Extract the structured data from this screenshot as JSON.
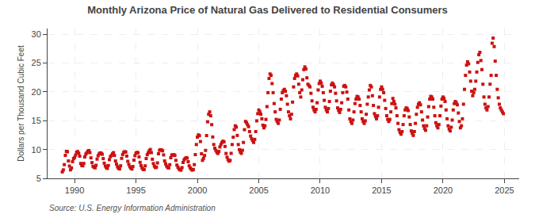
{
  "chart_data": {
    "type": "scatter",
    "title": "Monthly Arizona Price of Natural Gas Delivered to Residential Consumers",
    "ylabel": "Dollars per Thousand Cubic Feet",
    "annotations": [
      "Source: U.S. Energy Information Administration"
    ],
    "color": "#cc1111",
    "marker": "square",
    "grid": true,
    "xlim": [
      1987.8,
      2026.2
    ],
    "ylim": [
      5,
      31
    ],
    "xticks": [
      1990,
      1995,
      2000,
      2005,
      2010,
      2015,
      2020,
      2025
    ],
    "yticks": [
      5,
      10,
      15,
      20,
      25,
      30
    ],
    "x": [
      1989.0,
      1989.083,
      1989.167,
      1989.25,
      1989.333,
      1989.417,
      1989.5,
      1989.583,
      1989.667,
      1989.75,
      1989.833,
      1989.917,
      1990.0,
      1990.083,
      1990.167,
      1990.25,
      1990.333,
      1990.417,
      1990.5,
      1990.583,
      1990.667,
      1990.75,
      1990.833,
      1990.917,
      1991.0,
      1991.083,
      1991.167,
      1991.25,
      1991.333,
      1991.417,
      1991.5,
      1991.583,
      1991.667,
      1991.75,
      1991.833,
      1991.917,
      1992.0,
      1992.083,
      1992.167,
      1992.25,
      1992.333,
      1992.417,
      1992.5,
      1992.583,
      1992.667,
      1992.75,
      1992.833,
      1992.917,
      1993.0,
      1993.083,
      1993.167,
      1993.25,
      1993.333,
      1993.417,
      1993.5,
      1993.583,
      1993.667,
      1993.75,
      1993.833,
      1993.917,
      1994.0,
      1994.083,
      1994.167,
      1994.25,
      1994.333,
      1994.417,
      1994.5,
      1994.583,
      1994.667,
      1994.75,
      1994.833,
      1994.917,
      1995.0,
      1995.083,
      1995.167,
      1995.25,
      1995.333,
      1995.417,
      1995.5,
      1995.583,
      1995.667,
      1995.75,
      1995.833,
      1995.917,
      1996.0,
      1996.083,
      1996.167,
      1996.25,
      1996.333,
      1996.417,
      1996.5,
      1996.583,
      1996.667,
      1996.75,
      1996.833,
      1996.917,
      1997.0,
      1997.083,
      1997.167,
      1997.25,
      1997.333,
      1997.417,
      1997.5,
      1997.583,
      1997.667,
      1997.75,
      1997.833,
      1997.917,
      1998.0,
      1998.083,
      1998.167,
      1998.25,
      1998.333,
      1998.417,
      1998.5,
      1998.583,
      1998.667,
      1998.75,
      1998.833,
      1998.917,
      1999.0,
      1999.083,
      1999.167,
      1999.25,
      1999.333,
      1999.417,
      1999.5,
      1999.583,
      1999.667,
      1999.75,
      1999.833,
      1999.917,
      2000.0,
      2000.083,
      2000.167,
      2000.25,
      2000.333,
      2000.417,
      2000.5,
      2000.583,
      2000.667,
      2000.75,
      2000.833,
      2000.917,
      2001.0,
      2001.083,
      2001.167,
      2001.25,
      2001.333,
      2001.417,
      2001.5,
      2001.583,
      2001.667,
      2001.75,
      2001.833,
      2001.917,
      2002.0,
      2002.083,
      2002.167,
      2002.25,
      2002.333,
      2002.417,
      2002.5,
      2002.583,
      2002.667,
      2002.75,
      2002.833,
      2002.917,
      2003.0,
      2003.083,
      2003.167,
      2003.25,
      2003.333,
      2003.417,
      2003.5,
      2003.583,
      2003.667,
      2003.75,
      2003.833,
      2003.917,
      2004.0,
      2004.083,
      2004.167,
      2004.25,
      2004.333,
      2004.417,
      2004.5,
      2004.583,
      2004.667,
      2004.75,
      2004.833,
      2004.917,
      2005.0,
      2005.083,
      2005.167,
      2005.25,
      2005.333,
      2005.417,
      2005.5,
      2005.583,
      2005.667,
      2005.75,
      2005.833,
      2005.917,
      2006.0,
      2006.083,
      2006.167,
      2006.25,
      2006.333,
      2006.417,
      2006.5,
      2006.583,
      2006.667,
      2006.75,
      2006.833,
      2006.917,
      2007.0,
      2007.083,
      2007.167,
      2007.25,
      2007.333,
      2007.417,
      2007.5,
      2007.583,
      2007.667,
      2007.75,
      2007.833,
      2007.917,
      2008.0,
      2008.083,
      2008.167,
      2008.25,
      2008.333,
      2008.417,
      2008.5,
      2008.583,
      2008.667,
      2008.75,
      2008.833,
      2008.917,
      2009.0,
      2009.083,
      2009.167,
      2009.25,
      2009.333,
      2009.417,
      2009.5,
      2009.583,
      2009.667,
      2009.75,
      2009.833,
      2009.917,
      2010.0,
      2010.083,
      2010.167,
      2010.25,
      2010.333,
      2010.417,
      2010.5,
      2010.583,
      2010.667,
      2010.75,
      2010.833,
      2010.917,
      2011.0,
      2011.083,
      2011.167,
      2011.25,
      2011.333,
      2011.417,
      2011.5,
      2011.583,
      2011.667,
      2011.75,
      2011.833,
      2011.917,
      2012.0,
      2012.083,
      2012.167,
      2012.25,
      2012.333,
      2012.417,
      2012.5,
      2012.583,
      2012.667,
      2012.75,
      2012.833,
      2012.917,
      2013.0,
      2013.083,
      2013.167,
      2013.25,
      2013.333,
      2013.417,
      2013.5,
      2013.583,
      2013.667,
      2013.75,
      2013.833,
      2013.917,
      2014.0,
      2014.083,
      2014.167,
      2014.25,
      2014.333,
      2014.417,
      2014.5,
      2014.583,
      2014.667,
      2014.75,
      2014.833,
      2014.917,
      2015.0,
      2015.083,
      2015.167,
      2015.25,
      2015.333,
      2015.417,
      2015.5,
      2015.583,
      2015.667,
      2015.75,
      2015.833,
      2015.917,
      2016.0,
      2016.083,
      2016.167,
      2016.25,
      2016.333,
      2016.417,
      2016.5,
      2016.583,
      2016.667,
      2016.75,
      2016.833,
      2016.917,
      2017.0,
      2017.083,
      2017.167,
      2017.25,
      2017.333,
      2017.417,
      2017.5,
      2017.583,
      2017.667,
      2017.75,
      2017.833,
      2017.917,
      2018.0,
      2018.083,
      2018.167,
      2018.25,
      2018.333,
      2018.417,
      2018.5,
      2018.583,
      2018.667,
      2018.75,
      2018.833,
      2018.917,
      2019.0,
      2019.083,
      2019.167,
      2019.25,
      2019.333,
      2019.417,
      2019.5,
      2019.583,
      2019.667,
      2019.75,
      2019.833,
      2019.917,
      2020.0,
      2020.083,
      2020.167,
      2020.25,
      2020.333,
      2020.417,
      2020.5,
      2020.583,
      2020.667,
      2020.75,
      2020.833,
      2020.917,
      2021.0,
      2021.083,
      2021.167,
      2021.25,
      2021.333,
      2021.417,
      2021.5,
      2021.583,
      2021.667,
      2021.75,
      2021.833,
      2021.917,
      2022.0,
      2022.083,
      2022.167,
      2022.25,
      2022.333,
      2022.417,
      2022.5,
      2022.583,
      2022.667,
      2022.75,
      2022.833,
      2022.917,
      2023.0,
      2023.083,
      2023.167,
      2023.25,
      2023.333,
      2023.417,
      2023.5,
      2023.583,
      2023.667,
      2023.75,
      2023.833,
      2023.917,
      2024.0,
      2024.083,
      2024.167,
      2024.25,
      2024.333,
      2024.417,
      2024.5,
      2024.583,
      2024.667,
      2024.75,
      2024.833,
      2024.917
    ],
    "values": [
      6.12,
      6.47,
      7.38,
      8.99,
      9.68,
      9.61,
      8.02,
      7.13,
      6.48,
      6.8,
      7.91,
      8.43,
      8.62,
      9.04,
      9.54,
      9.65,
      9.37,
      8.85,
      7.59,
      7.25,
      7.18,
      7.59,
      8.72,
      9.21,
      9.44,
      9.72,
      9.83,
      9.47,
      8.56,
      7.73,
      7.1,
      6.94,
      6.83,
      7.27,
      8.34,
      8.92,
      9.23,
      9.43,
      9.37,
      9.18,
      8.43,
      7.64,
      7.15,
      6.87,
      6.73,
      7.23,
      8.24,
      8.75,
      8.97,
      9.25,
      9.47,
      8.98,
      8.02,
      7.46,
      6.99,
      6.72,
      6.64,
      7.18,
      8.47,
      9.14,
      9.51,
      9.62,
      9.58,
      8.87,
      7.96,
      7.43,
      7.01,
      6.78,
      6.62,
      7.05,
      8.16,
      8.93,
      9.38,
      9.51,
      9.44,
      8.73,
      7.78,
      7.21,
      6.78,
      6.54,
      6.54,
      7.17,
      8.44,
      9.1,
      9.44,
      9.78,
      10.01,
      9.47,
      8.32,
      7.57,
      7.12,
      6.87,
      6.95,
      7.68,
      9.27,
      9.87,
      9.98,
      9.93,
      9.78,
      9.07,
      8.03,
      7.51,
      7.11,
      6.89,
      6.81,
      7.37,
      8.58,
      9.06,
      9.03,
      9.12,
      8.97,
      8.12,
      7.31,
      6.93,
      6.64,
      6.48,
      6.43,
      6.87,
      7.75,
      8.22,
      8.43,
      8.59,
      8.52,
      7.89,
      7.18,
      6.83,
      6.59,
      6.43,
      6.54,
      7.38,
      9.12,
      10.87,
      12.16,
      12.54,
      12.41,
      11.39,
      9.27,
      8.13,
      8.47,
      8.97,
      9.85,
      12.43,
      14.82,
      16.12,
      16.54,
      15.87,
      14.32,
      12.18,
      10.87,
      10.23,
      9.87,
      9.54,
      9.32,
      9.67,
      10.45,
      10.87,
      11.23,
      11.45,
      11.34,
      10.54,
      9.32,
      8.67,
      8.23,
      7.98,
      8.12,
      9.34,
      10.87,
      12.14,
      13.47,
      14.12,
      13.89,
      12.45,
      10.87,
      9.98,
      9.56,
      9.34,
      9.87,
      11.23,
      13.45,
      14.89,
      14.67,
      14.32,
      13.98,
      13.12,
      12.34,
      11.87,
      11.54,
      11.23,
      11.76,
      13.12,
      14.98,
      16.23,
      16.87,
      16.54,
      16.12,
      15.34,
      14.23,
      13.76,
      14.12,
      15.23,
      17.45,
      19.87,
      22.34,
      23.12,
      22.87,
      21.45,
      19.87,
      17.98,
      16.54,
      15.23,
      14.87,
      14.54,
      15.12,
      16.98,
      18.76,
      19.87,
      20.23,
      20.45,
      20.12,
      19.34,
      17.87,
      16.54,
      15.87,
      15.34,
      16.12,
      18.23,
      20.87,
      22.34,
      22.87,
      23.12,
      22.78,
      21.34,
      19.87,
      19.12,
      20.34,
      22.12,
      23.87,
      24.34,
      23.98,
      22.45,
      21.34,
      21.12,
      20.87,
      19.76,
      18.45,
      17.34,
      16.87,
      16.54,
      16.98,
      18.12,
      20.34,
      21.45,
      21.87,
      21.54,
      20.98,
      19.87,
      18.54,
      17.34,
      16.87,
      16.54,
      17.12,
      18.34,
      20.12,
      21.23,
      21.54,
      21.23,
      20.87,
      19.76,
      18.45,
      17.23,
      16.78,
      16.43,
      16.98,
      18.12,
      19.87,
      20.98,
      21.12,
      20.87,
      19.98,
      18.76,
      16.87,
      15.34,
      14.87,
      14.54,
      15.12,
      16.54,
      17.98,
      18.76,
      19.23,
      19.12,
      18.76,
      17.65,
      16.54,
      15.34,
      14.87,
      14.54,
      14.98,
      16.12,
      17.87,
      19.12,
      20.34,
      21.12,
      20.87,
      19.34,
      17.65,
      16.23,
      15.76,
      15.34,
      15.87,
      17.34,
      19.12,
      20.45,
      20.87,
      20.45,
      19.87,
      18.54,
      17.12,
      15.87,
      15.23,
      14.87,
      15.23,
      16.54,
      17.98,
      18.87,
      18.34,
      17.87,
      17.23,
      15.87,
      14.54,
      13.45,
      12.98,
      12.67,
      13.12,
      14.34,
      15.87,
      16.87,
      17.23,
      17.12,
      16.76,
      15.65,
      14.34,
      13.23,
      12.78,
      12.45,
      13.12,
      14.54,
      16.12,
      17.34,
      17.87,
      18.12,
      17.76,
      16.54,
      15.12,
      14.12,
      13.65,
      13.34,
      14.12,
      15.65,
      17.45,
      18.76,
      19.23,
      19.12,
      18.76,
      17.34,
      15.87,
      14.65,
      14.12,
      13.76,
      14.34,
      15.87,
      17.54,
      18.76,
      19.12,
      18.87,
      18.34,
      16.87,
      15.34,
      14.12,
      13.56,
      13.23,
      13.87,
      15.12,
      16.87,
      17.98,
      18.34,
      18.12,
      17.76,
      16.34,
      14.87,
      13.76,
      14.12,
      15.34,
      17.87,
      20.45,
      22.87,
      24.65,
      25.23,
      24.87,
      23.45,
      21.87,
      20.12,
      19.34,
      19.87,
      20.45,
      21.87,
      23.45,
      25.12,
      26.45,
      26.87,
      25.45,
      23.87,
      21.34,
      19.12,
      17.87,
      17.23,
      16.87,
      17.45,
      19.12,
      21.34,
      22.87,
      28.45,
      29.34,
      27.87,
      25.34,
      22.87,
      20.45,
      18.98,
      17.87,
      17.23,
      16.87,
      16.54,
      16.23
    ]
  }
}
